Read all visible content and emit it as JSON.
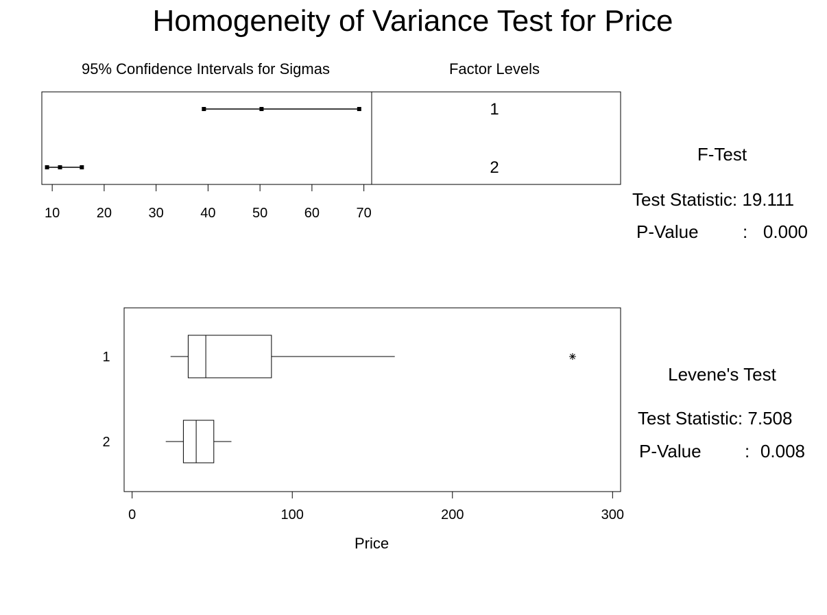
{
  "title": "Homogeneity of Variance Test for Price",
  "ci_panel": {
    "subtitle": "95% Confidence Intervals for Sigmas",
    "factor_header": "Factor Levels"
  },
  "f_test": {
    "heading": "F-Test",
    "statistic_label": "Test Statistic: 19.111",
    "pvalue_label": "P-Value",
    "pvalue_sep": ":",
    "pvalue": "0.000"
  },
  "levene_test": {
    "heading": "Levene's Test",
    "statistic_label": "Test Statistic: 7.508",
    "pvalue_label": "P-Value",
    "pvalue_sep": ":",
    "pvalue": "0.008"
  },
  "chart_data": [
    {
      "type": "interval",
      "title": "95% Confidence Intervals for Sigmas",
      "xlim": [
        8,
        71.5
      ],
      "xticks": [
        "10",
        "20",
        "30",
        "40",
        "50",
        "60",
        "70"
      ],
      "xtick_values": [
        10,
        20,
        30,
        40,
        50,
        60,
        70
      ],
      "factor_header": "Factor Levels",
      "levels": [
        {
          "level": "1",
          "lower": 39.2,
          "sigma": 50.3,
          "upper": 69.1
        },
        {
          "level": "2",
          "lower": 9.0,
          "sigma": 11.5,
          "upper": 15.7
        }
      ]
    },
    {
      "type": "boxplot",
      "xlabel": "Price",
      "xlim": [
        -5,
        305
      ],
      "xticks": [
        "0",
        "100",
        "200",
        "300"
      ],
      "xtick_values": [
        0,
        100,
        200,
        300
      ],
      "groups": [
        {
          "label": "1",
          "whisker_low": 24,
          "q1": 35,
          "median": 46,
          "q3": 87,
          "whisker_high": 164,
          "outliers": [
            275
          ]
        },
        {
          "label": "2",
          "whisker_low": 21,
          "q1": 32,
          "median": 40,
          "q3": 51,
          "whisker_high": 62,
          "outliers": []
        }
      ]
    }
  ]
}
